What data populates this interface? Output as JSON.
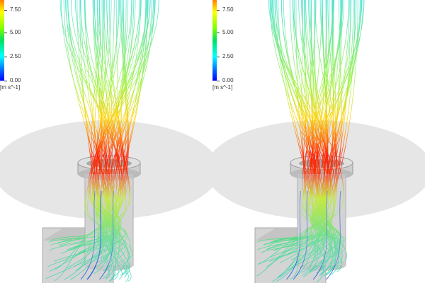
{
  "legend": {
    "ticks": [
      "7.50",
      "5.00",
      "2.50",
      "0.00"
    ],
    "unit": "[m s^-1]",
    "range": [
      0,
      10
    ],
    "colormap": [
      "#0000ff",
      "#00ffff",
      "#00e060",
      "#ffff00",
      "#ff0000"
    ]
  },
  "panels": [
    {
      "view": "left",
      "streamline_count": 70
    },
    {
      "view": "right",
      "streamline_count": 80
    }
  ]
}
